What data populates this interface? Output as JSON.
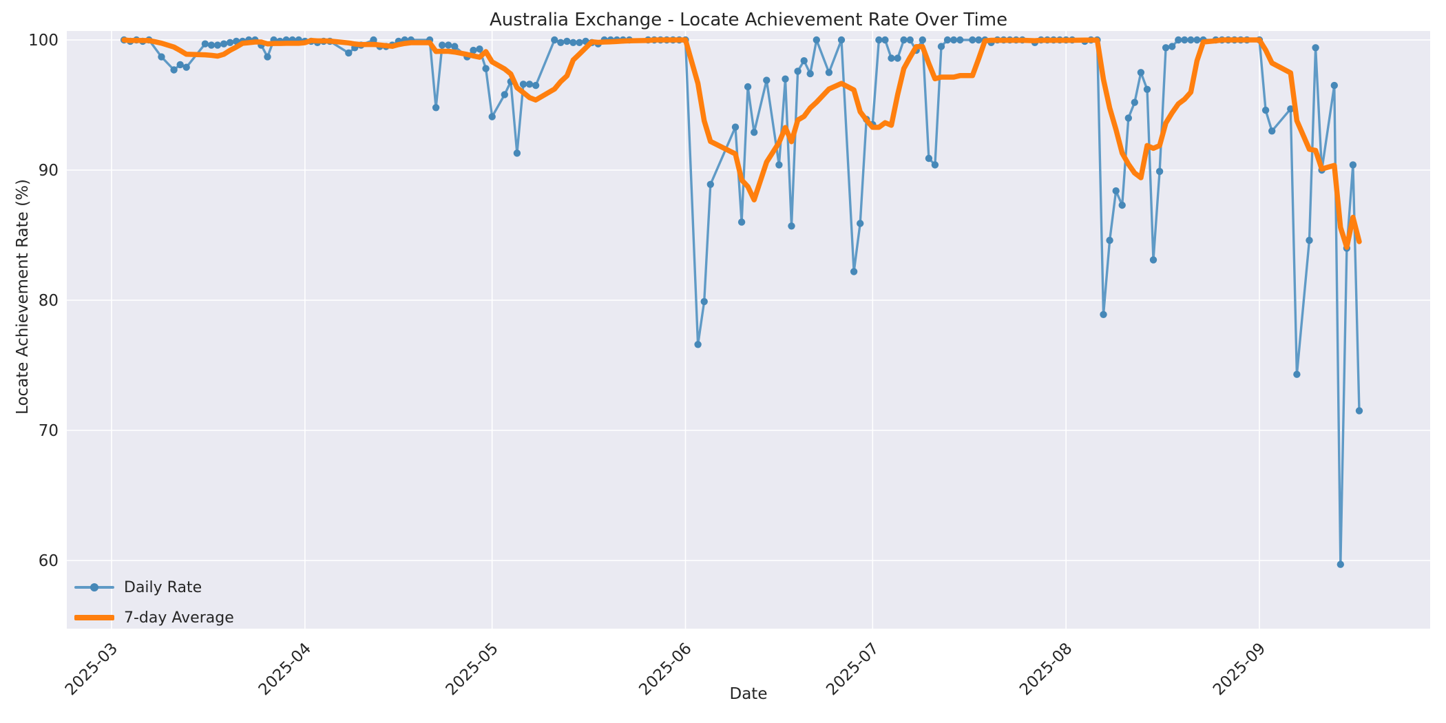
{
  "header": {
    "title": "Australia Exchange - Locate Achievement Rate Over Time"
  },
  "axes": {
    "xlabel": "Date",
    "ylabel": "Locate Achievement Rate (%)"
  },
  "legend": {
    "daily_label": "Daily Rate",
    "average_label": "7-day Average"
  },
  "colors": {
    "daily_line": "#5f9ac6",
    "daily_marker": "#4688b8",
    "average_line": "#ff7f0e",
    "plot_background": "#eaeaf2",
    "gridline": "#ffffff",
    "text": "#262626"
  },
  "chart_data": {
    "type": "line",
    "title": "Australia Exchange - Locate Achievement Rate Over Time",
    "xlabel": "Date",
    "ylabel": "Locate Achievement Rate (%)",
    "grid": true,
    "legend_position": "lower-left",
    "x_tick_labels": [
      "2025-03",
      "2025-04",
      "2025-05",
      "2025-06",
      "2025-07",
      "2025-08",
      "2025-09"
    ],
    "y_tick_labels": [
      60,
      70,
      80,
      90,
      100
    ],
    "ylim": [
      54.8,
      100.7
    ],
    "xlim": [
      "2025-02-24",
      "2025-09-27"
    ],
    "series": [
      {
        "name": "Daily Rate",
        "marker": true,
        "points": [
          [
            "2025-03-03",
            100.0
          ],
          [
            "2025-03-04",
            99.9
          ],
          [
            "2025-03-05",
            100.0
          ],
          [
            "2025-03-06",
            99.9
          ],
          [
            "2025-03-07",
            100.0
          ],
          [
            "2025-03-09",
            98.7
          ],
          [
            "2025-03-11",
            97.7
          ],
          [
            "2025-03-12",
            98.1
          ],
          [
            "2025-03-13",
            97.9
          ],
          [
            "2025-03-16",
            99.7
          ],
          [
            "2025-03-17",
            99.6
          ],
          [
            "2025-03-18",
            99.6
          ],
          [
            "2025-03-19",
            99.7
          ],
          [
            "2025-03-20",
            99.8
          ],
          [
            "2025-03-21",
            99.9
          ],
          [
            "2025-03-22",
            99.9
          ],
          [
            "2025-03-23",
            100.0
          ],
          [
            "2025-03-24",
            100.0
          ],
          [
            "2025-03-25",
            99.6
          ],
          [
            "2025-03-26",
            98.7
          ],
          [
            "2025-03-27",
            100.0
          ],
          [
            "2025-03-28",
            99.9
          ],
          [
            "2025-03-29",
            100.0
          ],
          [
            "2025-03-30",
            100.0
          ],
          [
            "2025-03-31",
            100.0
          ],
          [
            "2025-04-01",
            99.9
          ],
          [
            "2025-04-02",
            99.9
          ],
          [
            "2025-04-03",
            99.8
          ],
          [
            "2025-04-04",
            99.9
          ],
          [
            "2025-04-05",
            99.9
          ],
          [
            "2025-04-08",
            99.0
          ],
          [
            "2025-04-09",
            99.4
          ],
          [
            "2025-04-10",
            99.6
          ],
          [
            "2025-04-12",
            100.0
          ],
          [
            "2025-04-13",
            99.5
          ],
          [
            "2025-04-14",
            99.5
          ],
          [
            "2025-04-15",
            99.6
          ],
          [
            "2025-04-16",
            99.9
          ],
          [
            "2025-04-17",
            100.0
          ],
          [
            "2025-04-18",
            100.0
          ],
          [
            "2025-04-21",
            100.0
          ],
          [
            "2025-04-22",
            94.8
          ],
          [
            "2025-04-23",
            99.6
          ],
          [
            "2025-04-24",
            99.6
          ],
          [
            "2025-04-25",
            99.5
          ],
          [
            "2025-04-27",
            98.7
          ],
          [
            "2025-04-28",
            99.2
          ],
          [
            "2025-04-29",
            99.3
          ],
          [
            "2025-04-30",
            97.8
          ],
          [
            "2025-05-01",
            94.1
          ],
          [
            "2025-05-03",
            95.8
          ],
          [
            "2025-05-04",
            96.8
          ],
          [
            "2025-05-05",
            91.3
          ],
          [
            "2025-05-06",
            96.6
          ],
          [
            "2025-05-07",
            96.6
          ],
          [
            "2025-05-08",
            96.5
          ],
          [
            "2025-05-11",
            100.0
          ],
          [
            "2025-05-12",
            99.8
          ],
          [
            "2025-05-13",
            99.9
          ],
          [
            "2025-05-14",
            99.8
          ],
          [
            "2025-05-15",
            99.8
          ],
          [
            "2025-05-16",
            99.9
          ],
          [
            "2025-05-17",
            99.8
          ],
          [
            "2025-05-18",
            99.7
          ],
          [
            "2025-05-19",
            100.0
          ],
          [
            "2025-05-20",
            100.0
          ],
          [
            "2025-05-21",
            100.0
          ],
          [
            "2025-05-22",
            100.0
          ],
          [
            "2025-05-23",
            100.0
          ],
          [
            "2025-05-26",
            100.0
          ],
          [
            "2025-05-27",
            100.0
          ],
          [
            "2025-05-28",
            100.0
          ],
          [
            "2025-05-29",
            100.0
          ],
          [
            "2025-05-30",
            100.0
          ],
          [
            "2025-05-31",
            100.0
          ],
          [
            "2025-06-01",
            100.0
          ],
          [
            "2025-06-03",
            76.6
          ],
          [
            "2025-06-04",
            79.9
          ],
          [
            "2025-06-05",
            88.9
          ],
          [
            "2025-06-09",
            93.3
          ],
          [
            "2025-06-10",
            86.0
          ],
          [
            "2025-06-11",
            96.4
          ],
          [
            "2025-06-12",
            92.9
          ],
          [
            "2025-06-14",
            96.9
          ],
          [
            "2025-06-16",
            90.4
          ],
          [
            "2025-06-17",
            97.0
          ],
          [
            "2025-06-18",
            85.7
          ],
          [
            "2025-06-19",
            97.6
          ],
          [
            "2025-06-20",
            98.4
          ],
          [
            "2025-06-21",
            97.4
          ],
          [
            "2025-06-22",
            100.0
          ],
          [
            "2025-06-24",
            97.5
          ],
          [
            "2025-06-26",
            100.0
          ],
          [
            "2025-06-28",
            82.2
          ],
          [
            "2025-06-29",
            85.9
          ],
          [
            "2025-06-30",
            93.9
          ],
          [
            "2025-07-01",
            93.5
          ],
          [
            "2025-07-02",
            100.0
          ],
          [
            "2025-07-03",
            100.0
          ],
          [
            "2025-07-04",
            98.6
          ],
          [
            "2025-07-05",
            98.6
          ],
          [
            "2025-07-06",
            100.0
          ],
          [
            "2025-07-07",
            100.0
          ],
          [
            "2025-07-08",
            99.2
          ],
          [
            "2025-07-09",
            100.0
          ],
          [
            "2025-07-10",
            90.9
          ],
          [
            "2025-07-11",
            90.4
          ],
          [
            "2025-07-12",
            99.5
          ],
          [
            "2025-07-13",
            100.0
          ],
          [
            "2025-07-14",
            100.0
          ],
          [
            "2025-07-15",
            100.0
          ],
          [
            "2025-07-17",
            100.0
          ],
          [
            "2025-07-18",
            100.0
          ],
          [
            "2025-07-19",
            100.0
          ],
          [
            "2025-07-20",
            99.8
          ],
          [
            "2025-07-21",
            100.0
          ],
          [
            "2025-07-22",
            100.0
          ],
          [
            "2025-07-23",
            100.0
          ],
          [
            "2025-07-24",
            100.0
          ],
          [
            "2025-07-25",
            100.0
          ],
          [
            "2025-07-27",
            99.8
          ],
          [
            "2025-07-28",
            100.0
          ],
          [
            "2025-07-29",
            100.0
          ],
          [
            "2025-07-30",
            100.0
          ],
          [
            "2025-07-31",
            100.0
          ],
          [
            "2025-08-01",
            100.0
          ],
          [
            "2025-08-02",
            100.0
          ],
          [
            "2025-08-04",
            99.9
          ],
          [
            "2025-08-05",
            100.0
          ],
          [
            "2025-08-06",
            100.0
          ],
          [
            "2025-08-07",
            78.9
          ],
          [
            "2025-08-08",
            84.6
          ],
          [
            "2025-08-09",
            88.4
          ],
          [
            "2025-08-10",
            87.3
          ],
          [
            "2025-08-11",
            94.0
          ],
          [
            "2025-08-12",
            95.2
          ],
          [
            "2025-08-13",
            97.5
          ],
          [
            "2025-08-14",
            96.2
          ],
          [
            "2025-08-15",
            83.1
          ],
          [
            "2025-08-16",
            89.9
          ],
          [
            "2025-08-17",
            99.4
          ],
          [
            "2025-08-18",
            99.5
          ],
          [
            "2025-08-19",
            100.0
          ],
          [
            "2025-08-20",
            100.0
          ],
          [
            "2025-08-21",
            100.0
          ],
          [
            "2025-08-22",
            100.0
          ],
          [
            "2025-08-23",
            100.0
          ],
          [
            "2025-08-25",
            100.0
          ],
          [
            "2025-08-26",
            100.0
          ],
          [
            "2025-08-27",
            100.0
          ],
          [
            "2025-08-28",
            100.0
          ],
          [
            "2025-08-29",
            100.0
          ],
          [
            "2025-08-30",
            100.0
          ],
          [
            "2025-09-01",
            100.0
          ],
          [
            "2025-09-02",
            94.6
          ],
          [
            "2025-09-03",
            93.0
          ],
          [
            "2025-09-06",
            94.7
          ],
          [
            "2025-09-07",
            74.3
          ],
          [
            "2025-09-09",
            84.6
          ],
          [
            "2025-09-10",
            99.4
          ],
          [
            "2025-09-11",
            90.0
          ],
          [
            "2025-09-13",
            96.5
          ],
          [
            "2025-09-14",
            59.7
          ],
          [
            "2025-09-15",
            84.0
          ],
          [
            "2025-09-16",
            90.4
          ],
          [
            "2025-09-17",
            71.5
          ]
        ]
      },
      {
        "name": "7-day Average",
        "marker": false,
        "derived": "rolling_mean_window_7_min_periods_1_of_daily_rate"
      }
    ]
  }
}
